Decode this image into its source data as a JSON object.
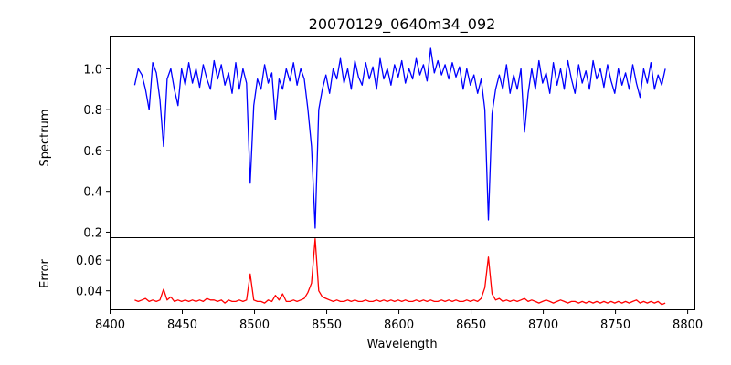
{
  "chart_data": {
    "type": "line",
    "title": "20070129_0640m34_092",
    "xlabel": "Wavelength",
    "xlim": [
      8400,
      8805
    ],
    "xticks": [
      8400,
      8450,
      8500,
      8550,
      8600,
      8650,
      8700,
      8750,
      8800
    ],
    "x_start": 8417,
    "x_step": 2.5,
    "panels": [
      {
        "name": "spectrum",
        "ylabel": "Spectrum",
        "ylim": [
          0.173,
          1.156
        ],
        "yticks": [
          0.2,
          0.4,
          0.6,
          0.8,
          1.0
        ],
        "ytick_labels": [
          "0.2",
          "0.4",
          "0.6",
          "0.8",
          "1.0"
        ],
        "color": "#0000ff",
        "values": [
          0.92,
          1.0,
          0.97,
          0.9,
          0.8,
          1.03,
          0.98,
          0.85,
          0.62,
          0.95,
          1.0,
          0.9,
          0.82,
          1.0,
          0.92,
          1.03,
          0.93,
          1.0,
          0.91,
          1.02,
          0.95,
          0.9,
          1.04,
          0.95,
          1.02,
          0.92,
          0.98,
          0.88,
          1.03,
          0.9,
          1.0,
          0.93,
          0.44,
          0.82,
          0.95,
          0.9,
          1.02,
          0.93,
          0.98,
          0.75,
          0.95,
          0.9,
          1.0,
          0.94,
          1.03,
          0.92,
          1.0,
          0.95,
          0.8,
          0.62,
          0.22,
          0.8,
          0.9,
          0.97,
          0.88,
          1.0,
          0.95,
          1.05,
          0.93,
          1.0,
          0.9,
          1.04,
          0.96,
          0.92,
          1.03,
          0.95,
          1.01,
          0.9,
          1.05,
          0.95,
          1.0,
          0.92,
          1.02,
          0.96,
          1.04,
          0.93,
          1.0,
          0.95,
          1.05,
          0.97,
          1.02,
          0.94,
          1.1,
          0.98,
          1.04,
          0.97,
          1.02,
          0.95,
          1.03,
          0.96,
          1.01,
          0.9,
          1.0,
          0.92,
          0.97,
          0.88,
          0.95,
          0.8,
          0.26,
          0.78,
          0.9,
          0.97,
          0.9,
          1.02,
          0.88,
          0.97,
          0.9,
          1.0,
          0.69,
          0.88,
          1.0,
          0.9,
          1.04,
          0.93,
          0.98,
          0.88,
          1.03,
          0.92,
          1.0,
          0.9,
          1.04,
          0.95,
          0.88,
          1.02,
          0.93,
          0.99,
          0.9,
          1.04,
          0.95,
          1.0,
          0.91,
          1.02,
          0.94,
          0.88,
          1.0,
          0.92,
          0.98,
          0.9,
          1.02,
          0.93,
          0.86,
          1.0,
          0.93,
          1.03,
          0.9,
          0.97,
          0.92,
          1.0
        ]
      },
      {
        "name": "error",
        "ylabel": "Error",
        "ylim": [
          0.0276,
          0.0747
        ],
        "yticks": [
          0.04,
          0.06
        ],
        "ytick_labels": [
          "0.04",
          "0.06"
        ],
        "color": "#ff0000",
        "values": [
          0.034,
          0.033,
          0.034,
          0.035,
          0.033,
          0.034,
          0.033,
          0.034,
          0.041,
          0.034,
          0.036,
          0.033,
          0.034,
          0.033,
          0.034,
          0.033,
          0.034,
          0.033,
          0.034,
          0.033,
          0.035,
          0.034,
          0.034,
          0.033,
          0.034,
          0.032,
          0.034,
          0.033,
          0.033,
          0.034,
          0.033,
          0.034,
          0.051,
          0.034,
          0.033,
          0.033,
          0.032,
          0.034,
          0.033,
          0.037,
          0.034,
          0.038,
          0.033,
          0.033,
          0.034,
          0.033,
          0.034,
          0.035,
          0.039,
          0.045,
          0.074,
          0.04,
          0.036,
          0.035,
          0.034,
          0.033,
          0.034,
          0.033,
          0.033,
          0.034,
          0.033,
          0.034,
          0.033,
          0.033,
          0.034,
          0.033,
          0.033,
          0.034,
          0.033,
          0.034,
          0.033,
          0.034,
          0.033,
          0.034,
          0.033,
          0.034,
          0.033,
          0.033,
          0.034,
          0.033,
          0.034,
          0.033,
          0.034,
          0.033,
          0.033,
          0.034,
          0.033,
          0.034,
          0.033,
          0.034,
          0.033,
          0.033,
          0.034,
          0.033,
          0.034,
          0.033,
          0.035,
          0.042,
          0.062,
          0.038,
          0.034,
          0.035,
          0.033,
          0.034,
          0.033,
          0.034,
          0.033,
          0.034,
          0.035,
          0.033,
          0.034,
          0.033,
          0.032,
          0.033,
          0.034,
          0.033,
          0.032,
          0.033,
          0.034,
          0.033,
          0.032,
          0.033,
          0.033,
          0.032,
          0.033,
          0.032,
          0.033,
          0.032,
          0.033,
          0.032,
          0.033,
          0.032,
          0.033,
          0.032,
          0.033,
          0.032,
          0.033,
          0.032,
          0.033,
          0.034,
          0.032,
          0.033,
          0.032,
          0.033,
          0.032,
          0.033,
          0.031,
          0.032
        ]
      }
    ]
  }
}
